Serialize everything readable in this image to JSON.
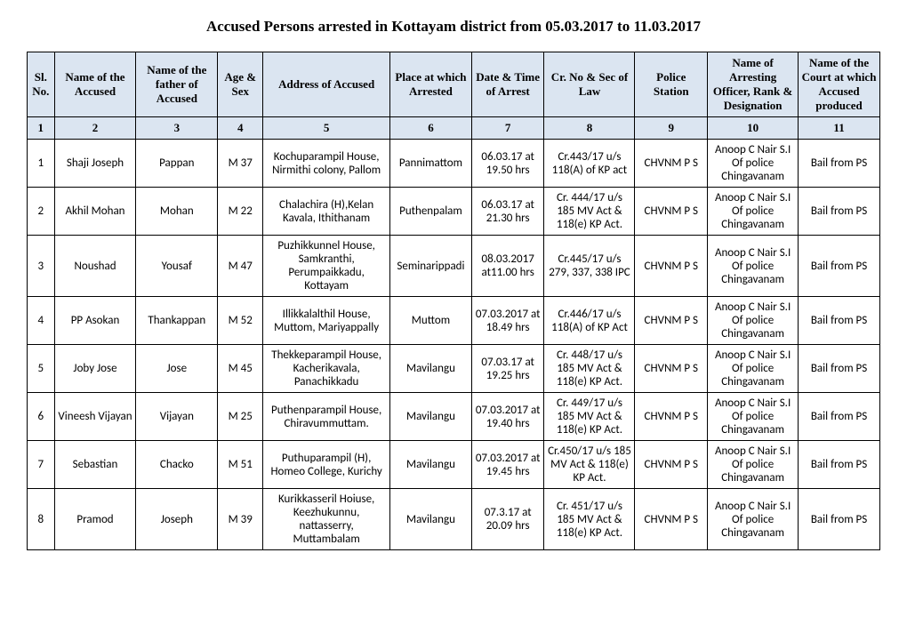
{
  "title": "Accused Persons arrested in   Kottayam   district from  05.03.2017 to 11.03.2017",
  "headers": [
    "Sl. No.",
    "Name of the Accused",
    "Name of the father of Accused",
    "Age & Sex",
    "Address of Accused",
    "Place at which Arrested",
    "Date & Time of Arrest",
    "Cr. No & Sec of Law",
    "Police Station",
    "Name of Arresting Officer, Rank & Designation",
    "Name of the Court at which Accused produced"
  ],
  "col_nums": [
    "1",
    "2",
    "3",
    "4",
    "5",
    "6",
    "7",
    "8",
    "9",
    "10",
    "11"
  ],
  "rows": [
    {
      "sl": "1",
      "name": "Shaji Joseph",
      "father": "Pappan",
      "age": "M 37",
      "addr": "Kochuparampil House, Nirmithi colony, Pallom",
      "place": "Pannimattom",
      "date": "06.03.17 at 19.50 hrs",
      "cr": "Cr.443/17 u/s 118(A) of KP act",
      "ps": "CHVNM P S",
      "officer": "Anoop C Nair S.I  Of police Chingavanam",
      "court": "Bail from PS"
    },
    {
      "sl": "2",
      "name": "Akhil Mohan",
      "father": "Mohan",
      "age": "M 22",
      "addr": "Chalachira (H),Kelan Kavala, Ithithanam",
      "place": "Puthenpalam",
      "date": "06.03.17 at 21.30 hrs",
      "cr": "Cr. 444/17 u/s 185 MV Act & 118(e) KP Act.",
      "ps": "CHVNM P S",
      "officer": "Anoop C Nair S.I  Of police Chingavanam",
      "court": "Bail from PS"
    },
    {
      "sl": "3",
      "name": "Noushad",
      "father": "Yousaf",
      "age": "M 47",
      "addr": "Puzhikkunnel House, Samkranthi, Perumpaikkadu, Kottayam",
      "place": "Seminarippadi",
      "date": "08.03.2017 at11.00 hrs",
      "cr": "Cr.445/17 u/s 279, 337, 338 IPC",
      "ps": "CHVNM P S",
      "officer": "Anoop C Nair S.I  Of police Chingavanam",
      "court": "Bail from PS"
    },
    {
      "sl": "4",
      "name": "PP Asokan",
      "father": "Thankappan",
      "age": "M 52",
      "addr": "Illikkalalthil House, Muttom, Mariyappally",
      "place": "Muttom",
      "date": "07.03.2017 at 18.49 hrs",
      "cr": "Cr.446/17 u/s 118(A) of KP Act",
      "ps": "CHVNM P S",
      "officer": "Anoop C Nair S.I  Of police Chingavanam",
      "court": "Bail from PS"
    },
    {
      "sl": "5",
      "name": "Joby Jose",
      "father": "Jose",
      "age": "M 45",
      "addr": "Thekkeparampil House, Kacherikavala, Panachikkadu",
      "place": "Mavilangu",
      "date": "07.03.17 at 19.25 hrs",
      "cr": "Cr. 448/17 u/s 185 MV Act & 118(e) KP Act.",
      "ps": "CHVNM P S",
      "officer": "Anoop C Nair S.I  Of police Chingavanam",
      "court": "Bail from PS"
    },
    {
      "sl": "6",
      "name": "Vineesh Vijayan",
      "father": "Vijayan",
      "age": "M 25",
      "addr": "Puthenparampil House, Chiravummuttam.",
      "place": "Mavilangu",
      "date": "07.03.2017 at 19.40 hrs",
      "cr": "Cr. 449/17 u/s 185 MV Act & 118(e) KP Act.",
      "ps": "CHVNM P S",
      "officer": "Anoop C Nair S.I  Of police Chingavanam",
      "court": "Bail from PS"
    },
    {
      "sl": "7",
      "name": "Sebastian",
      "father": "Chacko",
      "age": "M 51",
      "addr": "Puthuparampil (H), Homeo College, Kurichy",
      "place": "Mavilangu",
      "date": "07.03.2017 at 19.45 hrs",
      "cr": "Cr.450/17 u/s 185 MV Act & 118(e) KP Act.",
      "ps": "CHVNM P S",
      "officer": "Anoop C Nair S.I  Of police Chingavanam",
      "court": "Bail from PS"
    },
    {
      "sl": "8",
      "name": "Pramod",
      "father": "Joseph",
      "age": "M 39",
      "addr": "Kurikkasseril Hoiuse, Keezhukunnu, nattasserry, Muttambalam",
      "place": "Mavilangu",
      "date": "07.3.17 at 20.09 hrs",
      "cr": "Cr. 451/17 u/s 185 MV Act & 118(e) KP Act.",
      "ps": "CHVNM P S",
      "officer": "Anoop C Nair S.I  Of police Chingavanam",
      "court": "Bail from PS"
    }
  ]
}
